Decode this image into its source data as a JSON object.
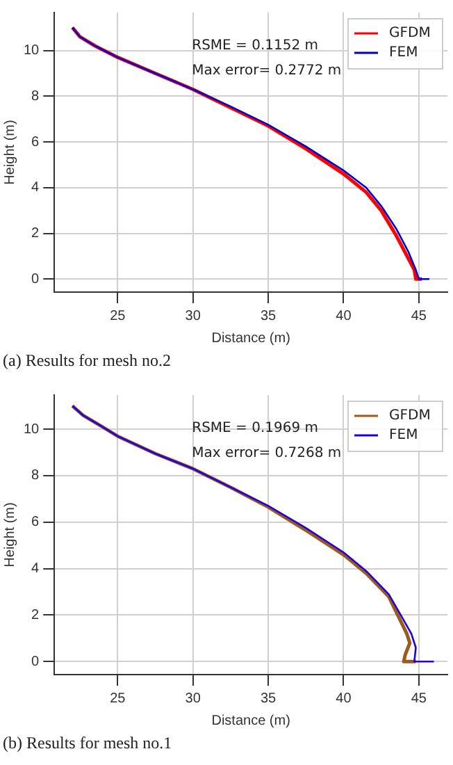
{
  "chart_data": [
    {
      "type": "line",
      "xlabel": "Distance (m)",
      "ylabel": "Height (m)",
      "xlim": [
        20.8,
        46.9
      ],
      "ylim": [
        -0.57,
        11.66
      ],
      "xticks": [
        25,
        30,
        35,
        40,
        45
      ],
      "yticks": [
        0,
        2,
        4,
        6,
        8,
        10
      ],
      "grid": true,
      "legend": "top right",
      "marker": "none",
      "line_style": "solid",
      "annotations": [
        "RSME = 0.1152 m",
        "Max error= 0.2772 m",
        "(a) Results for mesh no.2"
      ],
      "series": [
        {
          "name": "GFDM",
          "color": "#ff0000",
          "x": [
            22,
            22.5,
            23.5,
            25,
            27.5,
            30,
            32.5,
            35,
            37.5,
            40,
            41.5,
            42.5,
            43.5,
            44.3,
            44.7,
            44.8,
            45.2
          ],
          "values": [
            11,
            10.6,
            10.2,
            9.7,
            9.0,
            8.3,
            7.5,
            6.7,
            5.7,
            4.6,
            3.8,
            3.0,
            1.9,
            0.9,
            0.4,
            0,
            0
          ]
        },
        {
          "name": "FEM",
          "color": "#0000cc",
          "x": [
            22,
            22.5,
            23.5,
            25,
            27.5,
            30,
            32.5,
            35,
            37.5,
            40,
            41.5,
            42.5,
            43.5,
            44.3,
            44.8,
            45,
            45.7
          ],
          "values": [
            11,
            10.6,
            10.2,
            9.7,
            9.0,
            8.3,
            7.55,
            6.75,
            5.8,
            4.75,
            4.0,
            3.2,
            2.2,
            1.2,
            0.4,
            0,
            0
          ]
        }
      ]
    },
    {
      "type": "line",
      "xlabel": "Distance (m)",
      "ylabel": "Height (m)",
      "xlim": [
        20.8,
        46.9
      ],
      "ylim": [
        -0.56,
        11.47
      ],
      "xticks": [
        25,
        30,
        35,
        40,
        45
      ],
      "yticks": [
        0,
        2,
        4,
        6,
        8,
        10
      ],
      "grid": true,
      "legend": "top right",
      "marker": "none",
      "line_style": "solid",
      "annotations": [
        "RSME = 0.1969 m",
        "Max error= 0.7268 m",
        "(b) Results for mesh no.1"
      ],
      "series": [
        {
          "name": "GFDM",
          "color": "#9c5a1c",
          "x": [
            22,
            22.7,
            24,
            25,
            27.5,
            30,
            32.5,
            35,
            37.5,
            40,
            41.5,
            43,
            43.6,
            44.2,
            44.4,
            44.1,
            44,
            44.8
          ],
          "values": [
            11,
            10.6,
            10.1,
            9.7,
            8.95,
            8.3,
            7.5,
            6.65,
            5.65,
            4.6,
            3.8,
            2.8,
            2.0,
            1.2,
            0.8,
            0.3,
            0,
            0
          ]
        },
        {
          "name": "FEM",
          "color": "#2200dd",
          "x": [
            22,
            22.7,
            24,
            25,
            27.5,
            30,
            32.5,
            35,
            37.5,
            40,
            41.5,
            43,
            43.8,
            44.5,
            44.8,
            44.7,
            46
          ],
          "values": [
            11,
            10.6,
            10.1,
            9.7,
            8.95,
            8.3,
            7.5,
            6.7,
            5.75,
            4.7,
            3.9,
            2.9,
            2.0,
            1.2,
            0.6,
            0,
            0
          ]
        }
      ]
    }
  ]
}
